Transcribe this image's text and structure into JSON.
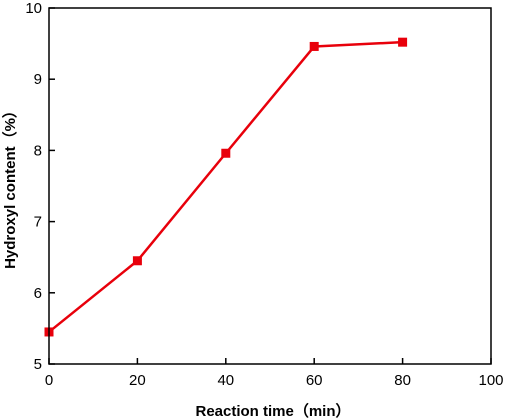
{
  "chart_data": {
    "type": "line",
    "title": "",
    "xlabel": "Reaction time（min）",
    "ylabel": "Hydroxyl content（%）",
    "xlim": [
      0,
      100
    ],
    "ylim": [
      5,
      10
    ],
    "xticks": [
      0,
      20,
      40,
      60,
      80,
      100
    ],
    "yticks": [
      5,
      6,
      7,
      8,
      9,
      10
    ],
    "grid": false,
    "series": [
      {
        "color": "#e8000b",
        "marker": "square",
        "x": [
          0,
          20,
          40,
          60,
          80
        ],
        "y": [
          5.45,
          6.45,
          7.96,
          9.46,
          9.52
        ]
      }
    ]
  }
}
